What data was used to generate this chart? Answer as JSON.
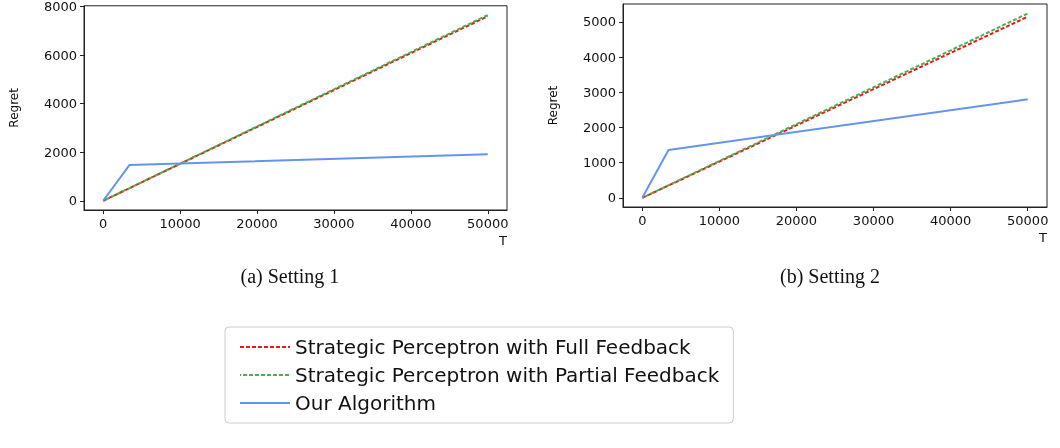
{
  "chart_data": [
    {
      "type": "line",
      "xlabel": "T",
      "ylabel": "Regret",
      "annotations": [
        "(a) Setting 1"
      ],
      "xlim": [
        -2500,
        52500
      ],
      "xticks": [
        0,
        10000,
        20000,
        30000,
        40000,
        50000
      ],
      "ylim": [
        -380,
        8030
      ],
      "yticks": [
        0,
        2000,
        4000,
        6000,
        8000
      ],
      "grid": false,
      "marker": "none",
      "legend": "bottom",
      "series": [
        {
          "name": "Strategic Perceptron with Full Feedback",
          "color": "#e41a1c",
          "line_style": "dashed",
          "x": [
            0,
            50000
          ],
          "values": [
            0,
            7600
          ]
        },
        {
          "name": "Strategic Perceptron with Partial Feedback",
          "color": "#4daf4a",
          "line_style": "dashed",
          "x": [
            0,
            50000
          ],
          "values": [
            0,
            7650
          ]
        },
        {
          "name": "Our Algorithm",
          "color": "#6495ed",
          "line_style": "solid",
          "x": [
            0,
            3400,
            50000
          ],
          "values": [
            0,
            1470,
            1920
          ]
        }
      ]
    },
    {
      "type": "line",
      "xlabel": "T",
      "ylabel": "Regret",
      "annotations": [
        "(b) Setting 2"
      ],
      "xlim": [
        -2500,
        52500
      ],
      "xticks": [
        0,
        10000,
        20000,
        30000,
        40000,
        50000
      ],
      "ylim": [
        -260,
        5510
      ],
      "yticks": [
        0,
        1000,
        2000,
        3000,
        4000,
        5000
      ],
      "grid": false,
      "marker": "none",
      "series": [
        {
          "name": "Strategic Perceptron with Full Feedback",
          "color": "#e41a1c",
          "line_style": "dashed",
          "x": [
            0,
            50000
          ],
          "values": [
            0,
            5150
          ]
        },
        {
          "name": "Strategic Perceptron with Partial Feedback",
          "color": "#4daf4a",
          "line_style": "dashed",
          "x": [
            0,
            50000
          ],
          "values": [
            0,
            5240
          ]
        },
        {
          "name": "Our Algorithm",
          "color": "#6495ed",
          "line_style": "solid",
          "x": [
            0,
            3400,
            50000
          ],
          "values": [
            0,
            1360,
            2800
          ]
        }
      ]
    }
  ]
}
